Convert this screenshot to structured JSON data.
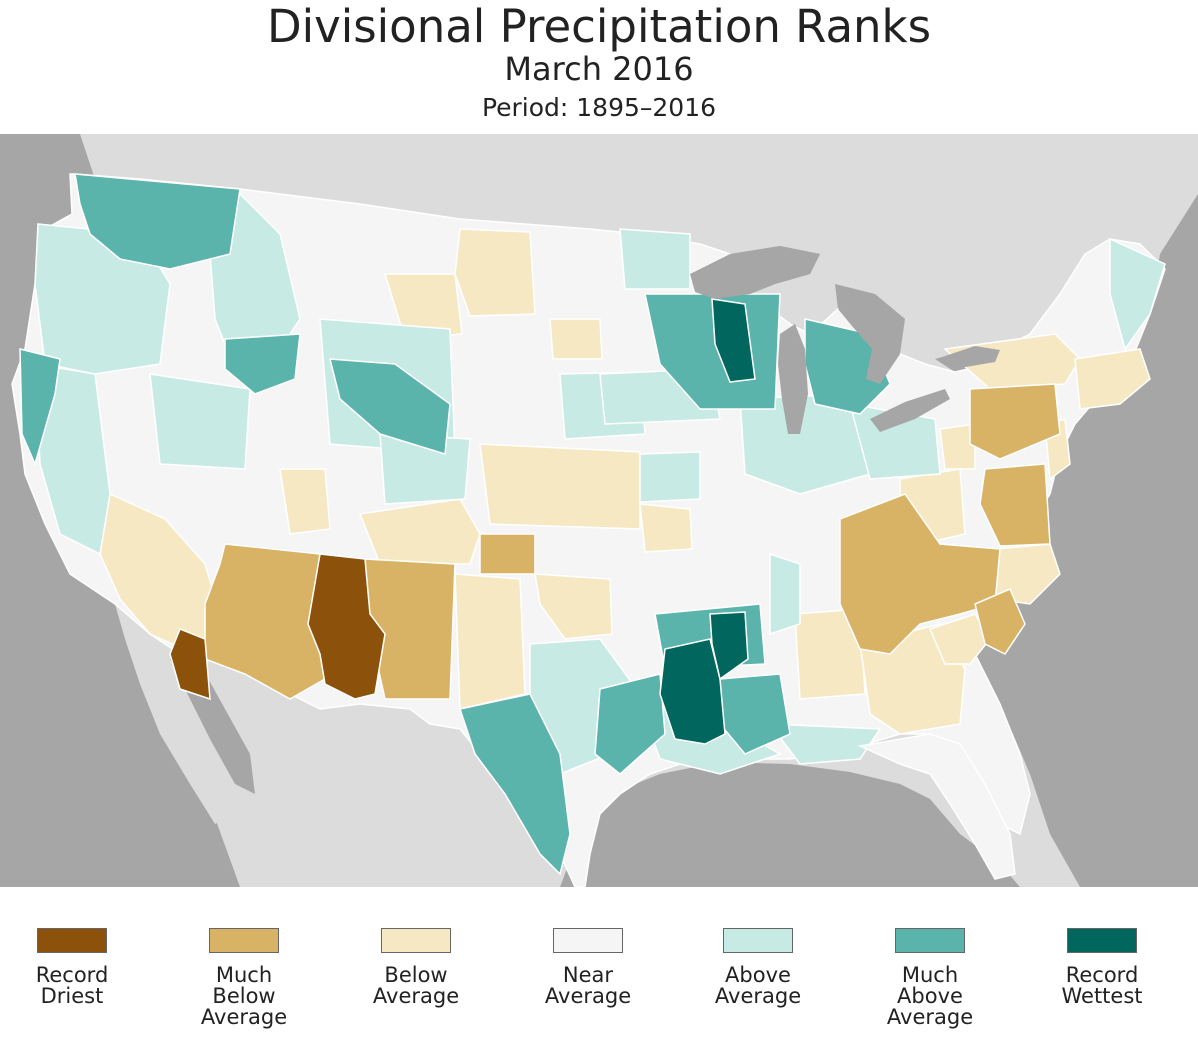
{
  "header": {
    "title": "Divisional Precipitation Ranks",
    "subtitle": "March 2016",
    "period": "Period: 1895–2016"
  },
  "colors": {
    "record_driest": "#8c510a",
    "much_below": "#d8b365",
    "below": "#f6e8c3",
    "near": "#f5f5f5",
    "above": "#c7eae5",
    "much_above": "#5ab4ac",
    "record_wettest": "#01665e",
    "water": "#a6a6a6",
    "land_outside": "#dcdcdc",
    "border": "#ffffff"
  },
  "legend": [
    {
      "label": "Record\nDriest",
      "color": "#8c510a"
    },
    {
      "label": "Much\nBelow\nAverage",
      "color": "#d8b365"
    },
    {
      "label": "Below\nAverage",
      "color": "#f6e8c3"
    },
    {
      "label": "Near\nAverage",
      "color": "#f5f5f5"
    },
    {
      "label": "Above\nAverage",
      "color": "#c7eae5"
    },
    {
      "label": "Much\nAbove\nAverage",
      "color": "#5ab4ac"
    },
    {
      "label": "Record\nWettest",
      "color": "#01665e"
    }
  ]
}
